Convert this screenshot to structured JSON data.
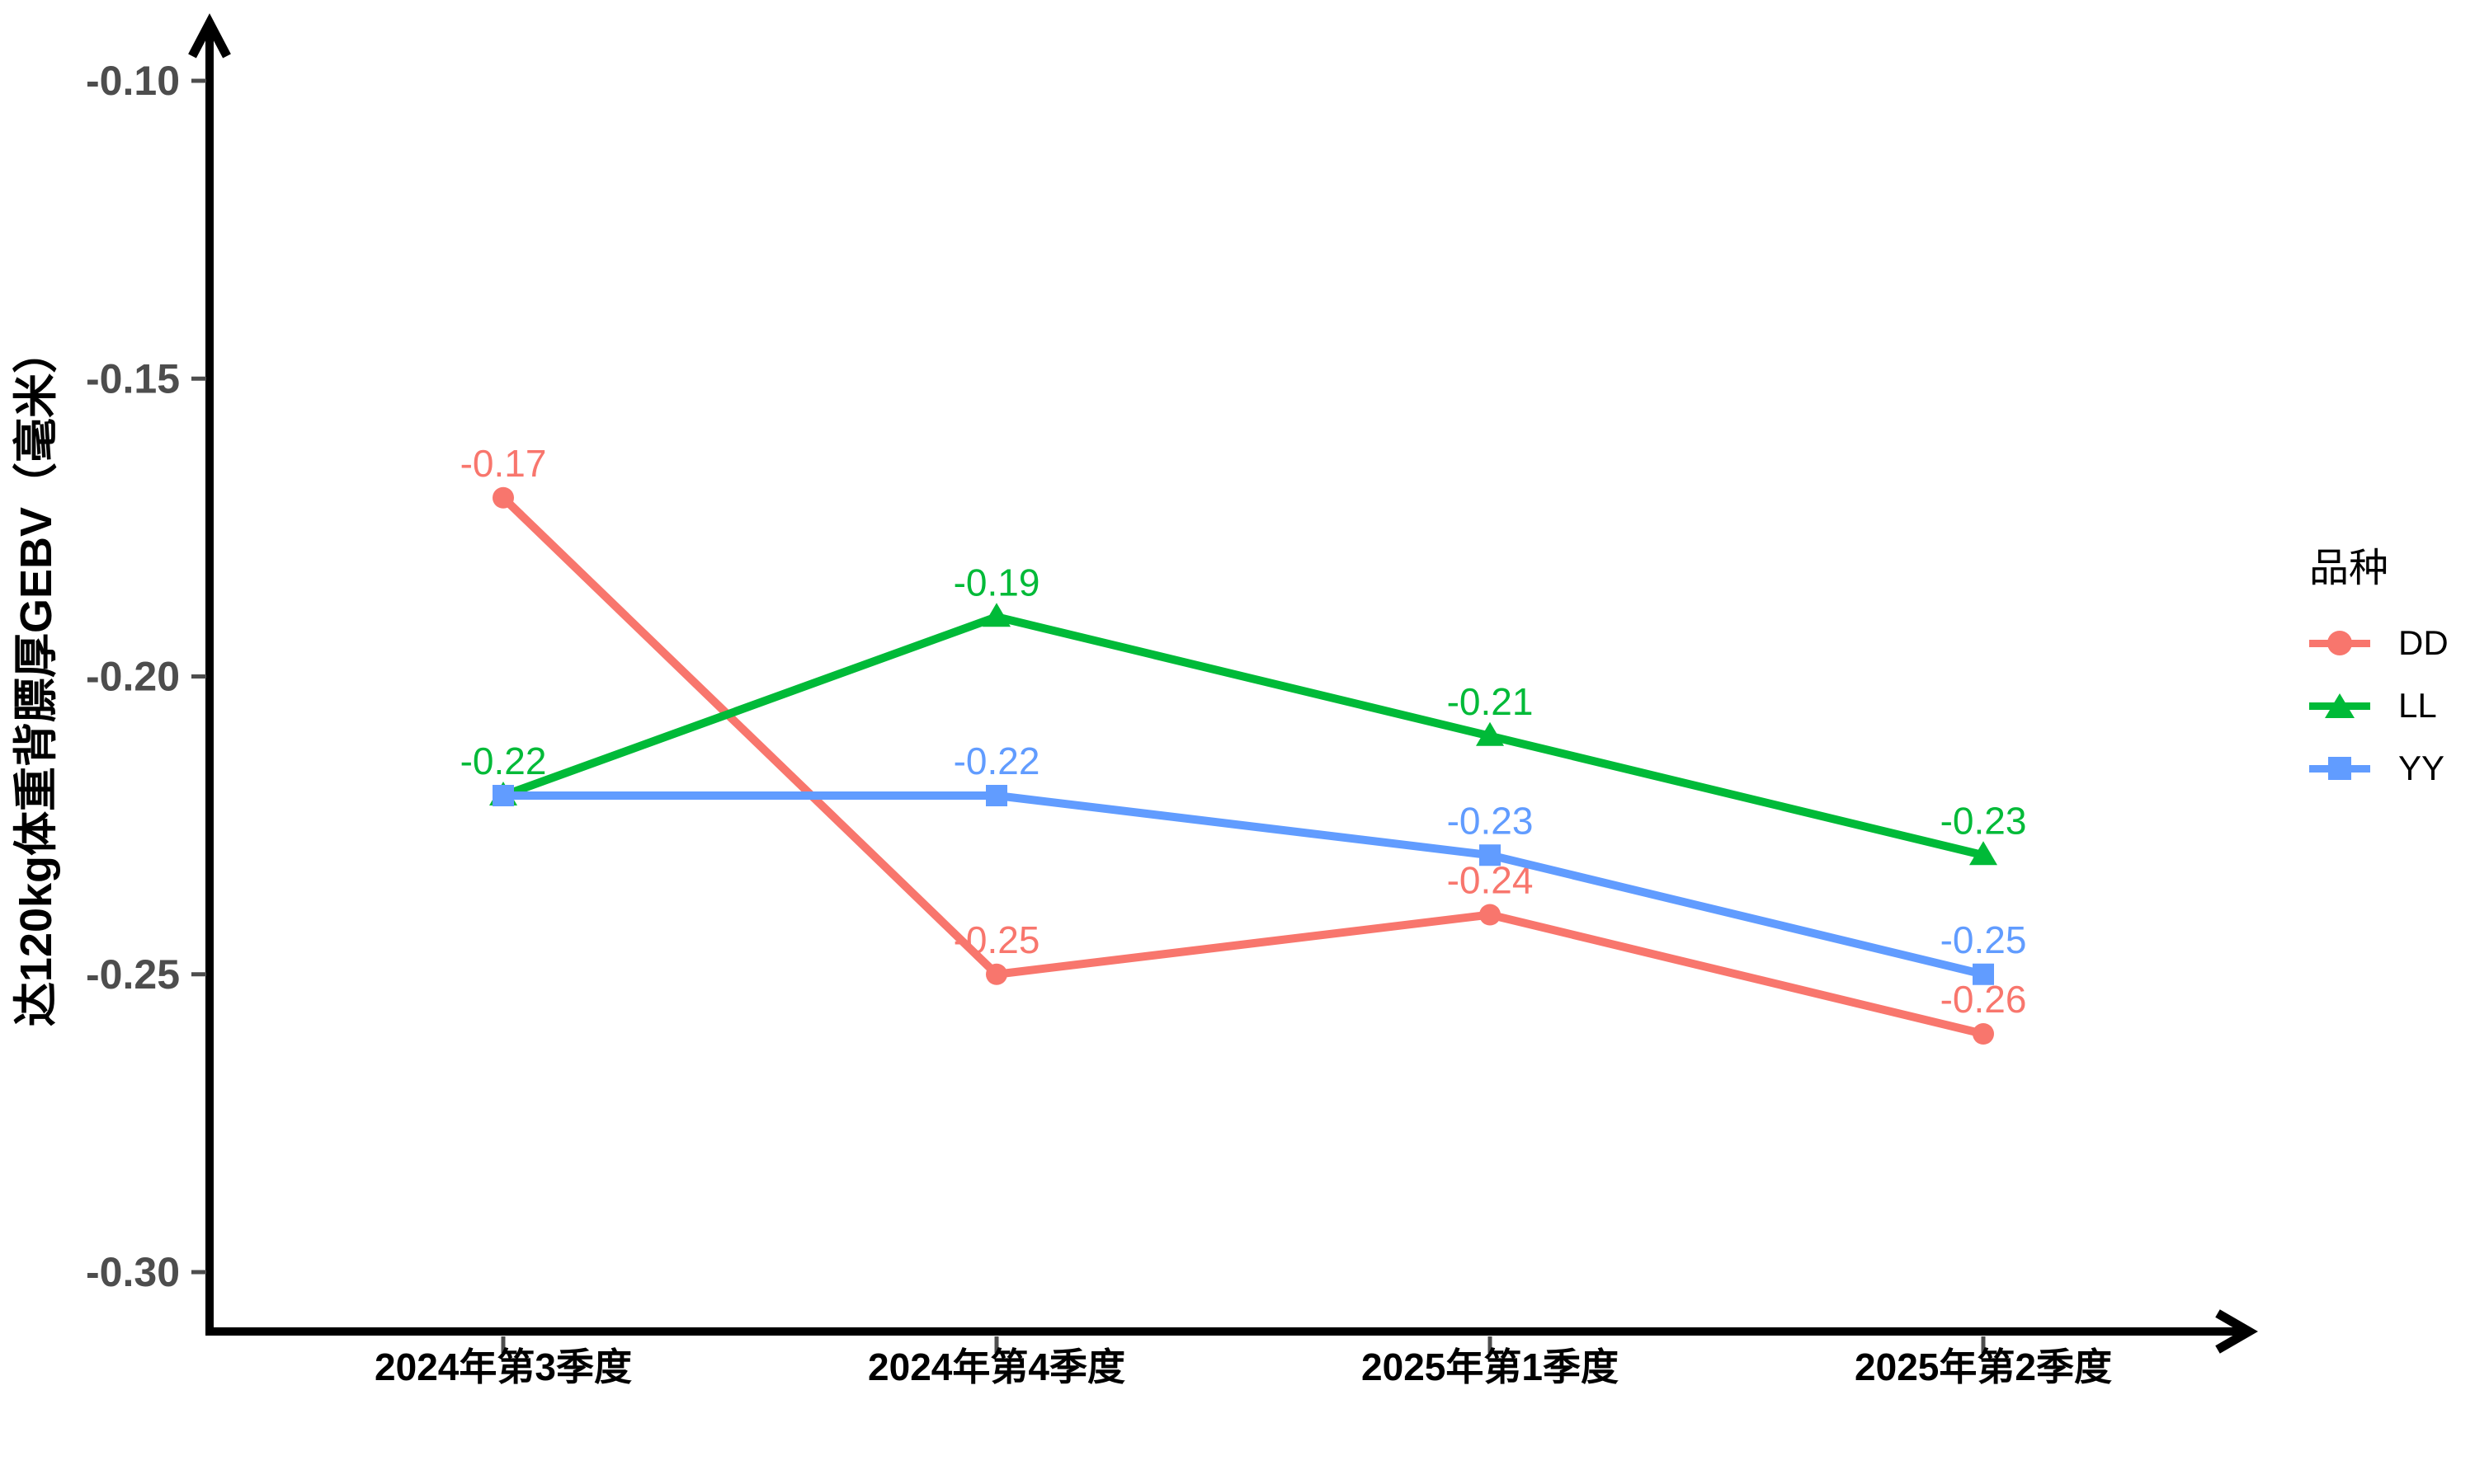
{
  "page": {
    "background": "#FFFFFF"
  },
  "chart_data": {
    "type": "line",
    "title": "",
    "xlabel": "",
    "ylabel": "达120kg体重背膘厚GEBV（毫米）",
    "categories": [
      "2024年第3季度",
      "2024年第4季度",
      "2025年第1季度",
      "2025年第2季度"
    ],
    "series": [
      {
        "name": "DD",
        "color": "#F8766D",
        "marker": "circle",
        "values": [
          -0.17,
          -0.25,
          -0.24,
          -0.26
        ],
        "point_labels": [
          "-0.17",
          "-0.25",
          "-0.24",
          "-0.26"
        ]
      },
      {
        "name": "LL",
        "color": "#00BA38",
        "marker": "triangle",
        "values": [
          -0.22,
          -0.19,
          -0.21,
          -0.23
        ],
        "point_labels": [
          "-0.22",
          "-0.19",
          "-0.21",
          "-0.23"
        ]
      },
      {
        "name": "YY",
        "color": "#619CFF",
        "marker": "square",
        "values": [
          -0.22,
          -0.22,
          -0.23,
          -0.25
        ],
        "point_labels": [
          "",
          "-0.22",
          "-0.23",
          "-0.25"
        ]
      }
    ],
    "y_ticks": [
      {
        "value": -0.1,
        "label": "-0.10"
      },
      {
        "value": -0.15,
        "label": "-0.15"
      },
      {
        "value": -0.2,
        "label": "-0.20"
      },
      {
        "value": -0.25,
        "label": "-0.25"
      },
      {
        "value": -0.3,
        "label": "-0.30"
      }
    ],
    "ylim": [
      -0.315,
      -0.085
    ],
    "grid": false,
    "legend": {
      "title": "品种",
      "position": "right",
      "items": [
        "DD",
        "LL",
        "YY"
      ]
    },
    "colors": {
      "axis": "#000000",
      "tick_mark": "#4D4D4D",
      "y_tick_label": "#4D4D4D",
      "x_tick_label": "#000000"
    }
  }
}
